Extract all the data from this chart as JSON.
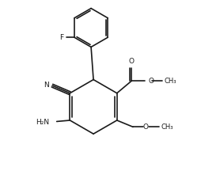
{
  "bg_color": "#ffffff",
  "line_color": "#1a1a1a",
  "line_width": 1.2,
  "font_size": 6.5,
  "figsize": [
    2.54,
    2.16
  ],
  "dpi": 100,
  "xlim": [
    0.5,
    8.5
  ],
  "ylim": [
    0.8,
    8.0
  ]
}
